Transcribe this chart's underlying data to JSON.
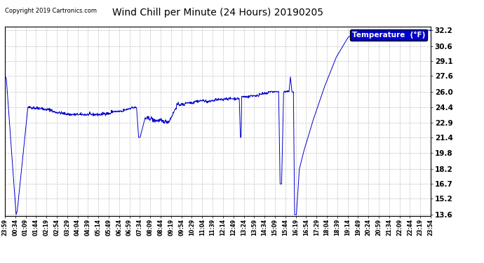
{
  "title": "Wind Chill per Minute (24 Hours) 20190205",
  "copyright": "Copyright 2019 Cartronics.com",
  "legend_label": "Temperature  (°F)",
  "line_color": "#0000CD",
  "background_color": "#ffffff",
  "plot_bg_color": "#ffffff",
  "grid_color": "#C0C0C0",
  "ylim_min": 13.6,
  "ylim_max": 32.6,
  "yticks": [
    13.6,
    15.2,
    16.7,
    18.2,
    19.8,
    21.4,
    22.9,
    24.4,
    26.0,
    27.6,
    29.1,
    30.6,
    32.2
  ],
  "xtick_labels": [
    "23:59",
    "00:34",
    "01:09",
    "01:44",
    "02:19",
    "02:54",
    "03:29",
    "04:04",
    "04:39",
    "05:14",
    "05:49",
    "06:24",
    "06:59",
    "07:34",
    "08:09",
    "08:44",
    "09:19",
    "09:54",
    "10:29",
    "11:04",
    "11:39",
    "12:14",
    "12:49",
    "13:24",
    "13:59",
    "14:34",
    "15:09",
    "15:44",
    "16:19",
    "16:54",
    "17:29",
    "18:04",
    "18:39",
    "19:14",
    "19:49",
    "20:24",
    "20:59",
    "21:34",
    "22:09",
    "22:44",
    "23:19",
    "23:54"
  ],
  "legend_bg": "#0000CD",
  "legend_text_color": "#ffffff",
  "figwidth": 6.9,
  "figheight": 3.75,
  "dpi": 100
}
